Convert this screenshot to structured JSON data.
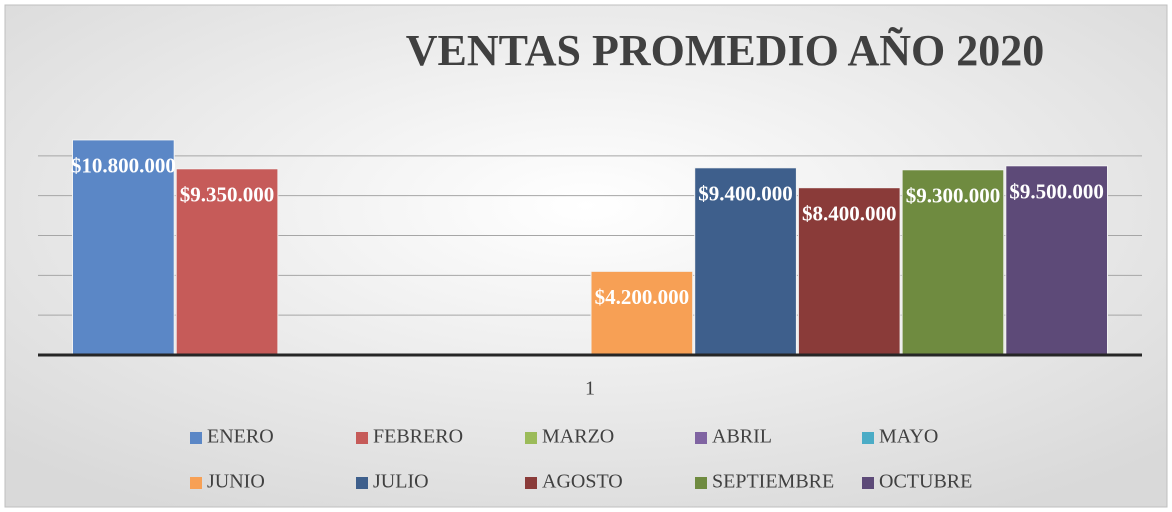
{
  "chart_data": {
    "type": "bar",
    "title": "VENTAS PROMEDIO AÑO 2020",
    "categories": [
      "1"
    ],
    "series": [
      {
        "name": "ENERO",
        "color": "#5b87c6",
        "values": [
          10800000
        ],
        "value_labels": [
          "$10.800.000"
        ]
      },
      {
        "name": "FEBRERO",
        "color": "#c65b59",
        "values": [
          9350000
        ],
        "value_labels": [
          "$9.350.000"
        ]
      },
      {
        "name": "MARZO",
        "color": "#9bbb59",
        "values": [
          0
        ]
      },
      {
        "name": "ABRIL",
        "color": "#8064a2",
        "values": [
          0
        ]
      },
      {
        "name": "MAYO",
        "color": "#4bacc6",
        "values": [
          0
        ]
      },
      {
        "name": "JUNIO",
        "color": "#f7a055",
        "values": [
          4200000
        ],
        "value_labels": [
          "$4.200.000"
        ]
      },
      {
        "name": "JULIO",
        "color": "#3e5f8c",
        "values": [
          9400000
        ],
        "value_labels": [
          "$9.400.000"
        ]
      },
      {
        "name": "AGOSTO",
        "color": "#8a3b39",
        "values": [
          8400000
        ],
        "value_labels": [
          "$8.400.000"
        ]
      },
      {
        "name": "SEPTIEMBRE",
        "color": "#6f8b40",
        "values": [
          9300000
        ],
        "value_labels": [
          "$9.300.000"
        ]
      },
      {
        "name": "OCTUBRE",
        "color": "#5d4a78",
        "values": [
          9500000
        ],
        "value_labels": [
          "$9.500.000"
        ]
      }
    ],
    "ylim": [
      0,
      12000000
    ],
    "yticks": [
      0,
      2000000,
      4000000,
      6000000,
      8000000,
      10000000
    ],
    "grid": true
  }
}
